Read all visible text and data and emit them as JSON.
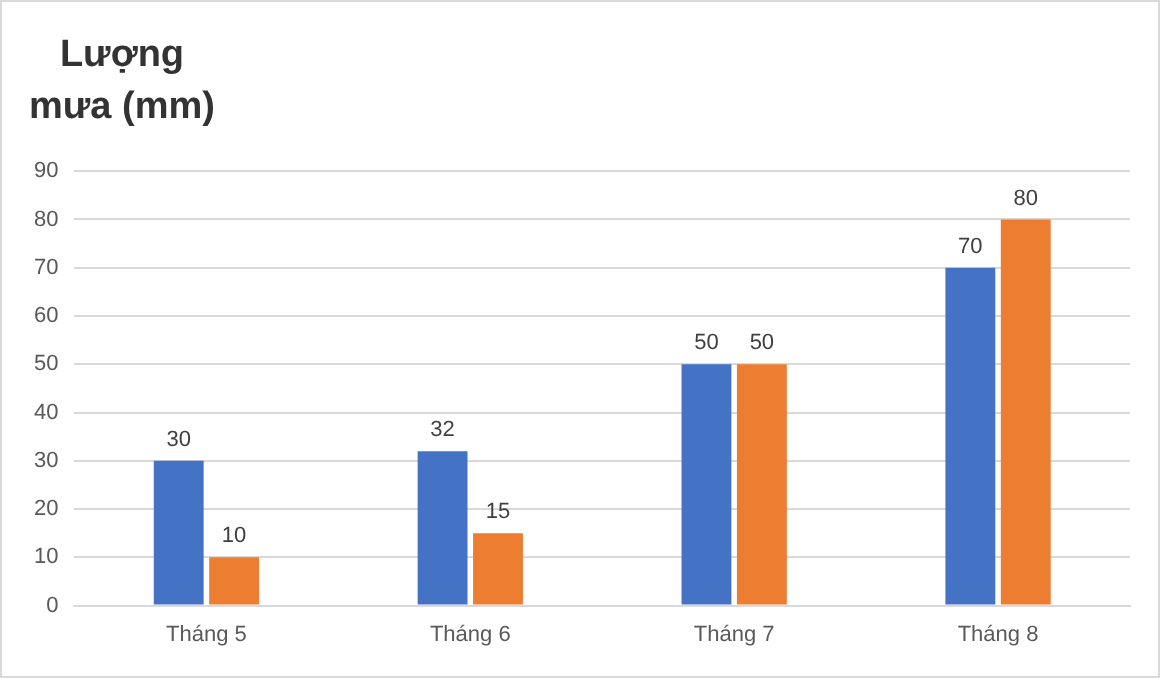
{
  "chart_data": {
    "type": "bar",
    "ylabel": "Lượng mưa (mm)",
    "categories": [
      "Tháng 5",
      "Tháng 6",
      "Tháng 7",
      "Tháng 8"
    ],
    "series": [
      {
        "color": "#4472c4",
        "values": [
          30,
          32,
          50,
          70
        ]
      },
      {
        "color": "#ed7d31",
        "values": [
          10,
          15,
          50,
          80
        ]
      }
    ],
    "ylim": [
      0,
      90
    ],
    "yticks": [
      0,
      10,
      20,
      30,
      40,
      50,
      60,
      70,
      80,
      90
    ],
    "grid": "y",
    "data_labels": true
  }
}
